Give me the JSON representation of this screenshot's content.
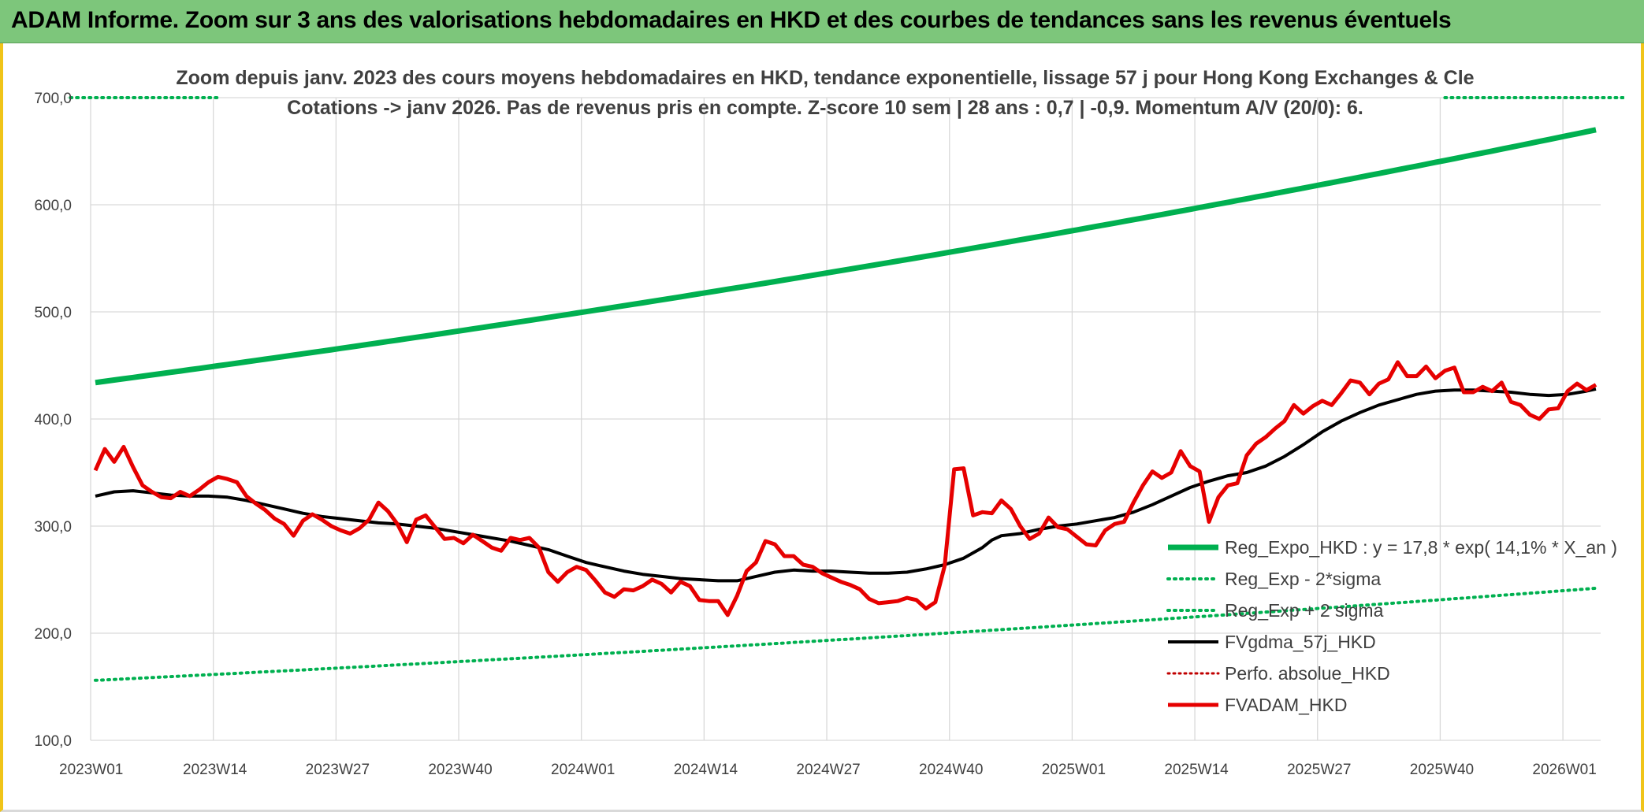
{
  "banner": {
    "title": "ADAM Informe. Zoom sur 3 ans des valorisations hebdomadaires en HKD et des courbes de tendances sans les revenus éventuels"
  },
  "colors": {
    "banner": "#7dc67b",
    "reg_expo": "#00b050",
    "fvgdma": "#000000",
    "fvadam": "#e60000",
    "perfo": "#c00000",
    "grid": "#d9d9d9"
  },
  "chart_data": {
    "type": "line",
    "title": [
      "Zoom depuis janv. 2023 des cours moyens hebdomadaires en HKD, tendance exponentielle, lissage 57 j pour Hong Kong Exchanges & Cle",
      "Cotations -> janv 2026. Pas de revenus pris en compte. Z-score 10 sem | 28 ans : 0,7 | -0,9. Momentum A/V (20/0): 6."
    ],
    "xlabel": "",
    "ylabel": "",
    "ylim": [
      100,
      700
    ],
    "yticks": [
      100,
      200,
      300,
      400,
      500,
      600,
      700
    ],
    "ytick_labels": [
      "100,0",
      "200,0",
      "300,0",
      "400,0",
      "500,0",
      "600,0",
      "700,0"
    ],
    "x_index_range": [
      0,
      159
    ],
    "xticks": [
      {
        "i": 0,
        "label": "2023W01"
      },
      {
        "i": 13,
        "label": "2023W14"
      },
      {
        "i": 26,
        "label": "2023W27"
      },
      {
        "i": 39,
        "label": "2023W40"
      },
      {
        "i": 52,
        "label": "2024W01"
      },
      {
        "i": 65,
        "label": "2024W14"
      },
      {
        "i": 78,
        "label": "2024W27"
      },
      {
        "i": 91,
        "label": "2024W40"
      },
      {
        "i": 104,
        "label": "2025W01"
      },
      {
        "i": 117,
        "label": "2025W14"
      },
      {
        "i": 130,
        "label": "2025W27"
      },
      {
        "i": 143,
        "label": "2025W40"
      },
      {
        "i": 156,
        "label": "2026W01"
      }
    ],
    "grid": true,
    "legend_position": "bottom-right",
    "series": [
      {
        "name": "Reg_Expo_HKD : y = 17,8 * exp( 14,1% *  X_an )",
        "key": "reg_expo",
        "style": "solid-thick",
        "points": [
          [
            0,
            434
          ],
          [
            52,
            498
          ],
          [
            104,
            574
          ],
          [
            159,
            670
          ]
        ]
      },
      {
        "name": "Reg_Exp - 2*sigma",
        "key": "minus2",
        "style": "dotted",
        "points": [
          [
            0,
            156
          ],
          [
            52,
            180
          ],
          [
            104,
            207
          ],
          [
            159,
            242
          ]
        ]
      },
      {
        "name": "Reg_Exp + 2 sigma",
        "key": "plus2",
        "style": "dotted",
        "points": [
          [
            -10,
            700
          ],
          [
            13,
            700
          ],
          [
            null,
            null
          ],
          [
            143,
            700
          ],
          [
            170,
            700
          ]
        ]
      },
      {
        "name": "FVgdma_57j_HKD",
        "key": "fvgdma",
        "style": "solid",
        "points": [
          [
            0,
            328
          ],
          [
            2,
            332
          ],
          [
            4,
            333
          ],
          [
            6,
            331
          ],
          [
            8,
            329
          ],
          [
            10,
            328
          ],
          [
            12,
            328
          ],
          [
            14,
            327
          ],
          [
            16,
            324
          ],
          [
            18,
            320
          ],
          [
            20,
            316
          ],
          [
            22,
            312
          ],
          [
            24,
            309
          ],
          [
            26,
            307
          ],
          [
            28,
            305
          ],
          [
            30,
            303
          ],
          [
            32,
            302
          ],
          [
            34,
            300
          ],
          [
            36,
            298
          ],
          [
            38,
            295
          ],
          [
            40,
            292
          ],
          [
            42,
            289
          ],
          [
            44,
            286
          ],
          [
            46,
            282
          ],
          [
            48,
            278
          ],
          [
            50,
            272
          ],
          [
            52,
            266
          ],
          [
            54,
            262
          ],
          [
            56,
            258
          ],
          [
            58,
            255
          ],
          [
            60,
            253
          ],
          [
            62,
            251
          ],
          [
            64,
            250
          ],
          [
            66,
            249
          ],
          [
            68,
            249
          ],
          [
            70,
            253
          ],
          [
            72,
            257
          ],
          [
            74,
            259
          ],
          [
            76,
            258
          ],
          [
            78,
            258
          ],
          [
            80,
            257
          ],
          [
            82,
            256
          ],
          [
            84,
            256
          ],
          [
            86,
            257
          ],
          [
            88,
            260
          ],
          [
            90,
            264
          ],
          [
            92,
            270
          ],
          [
            94,
            280
          ],
          [
            95,
            287
          ],
          [
            96,
            291
          ],
          [
            98,
            293
          ],
          [
            100,
            297
          ],
          [
            102,
            300
          ],
          [
            104,
            302
          ],
          [
            106,
            305
          ],
          [
            108,
            308
          ],
          [
            110,
            313
          ],
          [
            112,
            320
          ],
          [
            114,
            328
          ],
          [
            116,
            336
          ],
          [
            118,
            342
          ],
          [
            120,
            347
          ],
          [
            122,
            350
          ],
          [
            124,
            356
          ],
          [
            126,
            365
          ],
          [
            128,
            376
          ],
          [
            130,
            388
          ],
          [
            132,
            398
          ],
          [
            134,
            406
          ],
          [
            136,
            413
          ],
          [
            138,
            418
          ],
          [
            140,
            423
          ],
          [
            142,
            426
          ],
          [
            144,
            427
          ],
          [
            146,
            427
          ],
          [
            148,
            426
          ],
          [
            150,
            425
          ],
          [
            152,
            423
          ],
          [
            154,
            422
          ],
          [
            156,
            423
          ],
          [
            158,
            426
          ],
          [
            159,
            428
          ]
        ]
      },
      {
        "name": "Perfo. absolue_HKD",
        "key": "perfo",
        "style": "dotted",
        "points": []
      },
      {
        "name": "FVADAM_HKD",
        "key": "fvadam",
        "style": "solid-thick",
        "points": [
          [
            0,
            352
          ],
          [
            1,
            372
          ],
          [
            2,
            360
          ],
          [
            3,
            374
          ],
          [
            4,
            355
          ],
          [
            5,
            338
          ],
          [
            6,
            332
          ],
          [
            7,
            327
          ],
          [
            8,
            326
          ],
          [
            9,
            332
          ],
          [
            10,
            328
          ],
          [
            11,
            334
          ],
          [
            12,
            341
          ],
          [
            13,
            346
          ],
          [
            14,
            344
          ],
          [
            15,
            341
          ],
          [
            16,
            328
          ],
          [
            17,
            321
          ],
          [
            18,
            315
          ],
          [
            19,
            307
          ],
          [
            20,
            302
          ],
          [
            21,
            291
          ],
          [
            22,
            305
          ],
          [
            23,
            311
          ],
          [
            24,
            306
          ],
          [
            25,
            300
          ],
          [
            26,
            296
          ],
          [
            27,
            293
          ],
          [
            28,
            298
          ],
          [
            29,
            306
          ],
          [
            30,
            322
          ],
          [
            31,
            314
          ],
          [
            32,
            302
          ],
          [
            33,
            285
          ],
          [
            34,
            306
          ],
          [
            35,
            310
          ],
          [
            36,
            299
          ],
          [
            37,
            288
          ],
          [
            38,
            289
          ],
          [
            39,
            284
          ],
          [
            40,
            292
          ],
          [
            41,
            286
          ],
          [
            42,
            280
          ],
          [
            43,
            277
          ],
          [
            44,
            289
          ],
          [
            45,
            287
          ],
          [
            46,
            289
          ],
          [
            47,
            280
          ],
          [
            48,
            257
          ],
          [
            49,
            248
          ],
          [
            50,
            257
          ],
          [
            51,
            262
          ],
          [
            52,
            259
          ],
          [
            53,
            249
          ],
          [
            54,
            238
          ],
          [
            55,
            234
          ],
          [
            56,
            241
          ],
          [
            57,
            240
          ],
          [
            58,
            244
          ],
          [
            59,
            250
          ],
          [
            60,
            246
          ],
          [
            61,
            238
          ],
          [
            62,
            248
          ],
          [
            63,
            244
          ],
          [
            64,
            231
          ],
          [
            65,
            230
          ],
          [
            66,
            230
          ],
          [
            67,
            217
          ],
          [
            68,
            235
          ],
          [
            69,
            258
          ],
          [
            70,
            266
          ],
          [
            71,
            286
          ],
          [
            72,
            283
          ],
          [
            73,
            272
          ],
          [
            74,
            272
          ],
          [
            75,
            264
          ],
          [
            76,
            262
          ],
          [
            77,
            256
          ],
          [
            78,
            252
          ],
          [
            79,
            248
          ],
          [
            80,
            245
          ],
          [
            81,
            241
          ],
          [
            82,
            232
          ],
          [
            83,
            228
          ],
          [
            84,
            229
          ],
          [
            85,
            230
          ],
          [
            86,
            233
          ],
          [
            87,
            231
          ],
          [
            88,
            223
          ],
          [
            89,
            229
          ],
          [
            90,
            263
          ],
          [
            91,
            353
          ],
          [
            92,
            354
          ],
          [
            93,
            310
          ],
          [
            94,
            313
          ],
          [
            95,
            312
          ],
          [
            96,
            324
          ],
          [
            97,
            316
          ],
          [
            98,
            300
          ],
          [
            99,
            288
          ],
          [
            100,
            293
          ],
          [
            101,
            308
          ],
          [
            102,
            299
          ],
          [
            103,
            297
          ],
          [
            104,
            290
          ],
          [
            105,
            283
          ],
          [
            106,
            282
          ],
          [
            107,
            296
          ],
          [
            108,
            302
          ],
          [
            109,
            304
          ],
          [
            110,
            322
          ],
          [
            111,
            338
          ],
          [
            112,
            351
          ],
          [
            113,
            345
          ],
          [
            114,
            350
          ],
          [
            115,
            370
          ],
          [
            116,
            356
          ],
          [
            117,
            351
          ],
          [
            118,
            304
          ],
          [
            119,
            327
          ],
          [
            120,
            338
          ],
          [
            121,
            340
          ],
          [
            122,
            366
          ],
          [
            123,
            377
          ],
          [
            124,
            383
          ],
          [
            125,
            391
          ],
          [
            126,
            398
          ],
          [
            127,
            413
          ],
          [
            128,
            405
          ],
          [
            129,
            412
          ],
          [
            130,
            417
          ],
          [
            131,
            413
          ],
          [
            132,
            424
          ],
          [
            133,
            436
          ],
          [
            134,
            434
          ],
          [
            135,
            423
          ],
          [
            136,
            433
          ],
          [
            137,
            437
          ],
          [
            138,
            453
          ],
          [
            139,
            440
          ],
          [
            140,
            440
          ],
          [
            141,
            449
          ],
          [
            142,
            438
          ],
          [
            143,
            445
          ],
          [
            144,
            448
          ],
          [
            145,
            425
          ],
          [
            146,
            425
          ],
          [
            147,
            430
          ],
          [
            148,
            426
          ],
          [
            149,
            434
          ],
          [
            150,
            416
          ],
          [
            151,
            413
          ],
          [
            152,
            404
          ],
          [
            153,
            400
          ],
          [
            154,
            409
          ],
          [
            155,
            410
          ],
          [
            156,
            426
          ],
          [
            157,
            433
          ],
          [
            158,
            427
          ],
          [
            159,
            432
          ]
        ]
      }
    ]
  }
}
